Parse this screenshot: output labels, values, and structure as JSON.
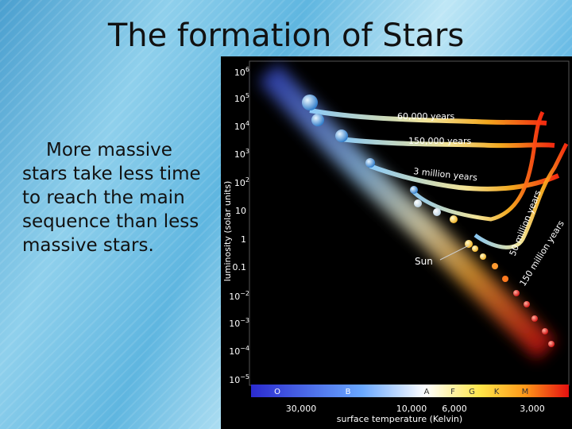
{
  "slide": {
    "title": "The formation of Stars",
    "body_text": "More massive stars take less time to reach the main sequence than less massive stars."
  },
  "figure": {
    "y_axis_label": "luminosity (solar units)",
    "y_ticks": [
      {
        "base": "10",
        "exp": "6"
      },
      {
        "base": "10",
        "exp": "5"
      },
      {
        "base": "10",
        "exp": "4"
      },
      {
        "base": "10",
        "exp": "3"
      },
      {
        "base": "10",
        "exp": "2"
      },
      {
        "base": "10",
        "exp": ""
      },
      {
        "base": "1",
        "exp": ""
      },
      {
        "base": "0.1",
        "exp": ""
      },
      {
        "base": "10",
        "exp": "−2"
      },
      {
        "base": "10",
        "exp": "−3"
      },
      {
        "base": "10",
        "exp": "−4"
      },
      {
        "base": "10",
        "exp": "−5"
      }
    ],
    "spectral_classes": [
      "O",
      "B",
      "A",
      "F",
      "G",
      "K",
      "M"
    ],
    "temperature_ticks": [
      "30,000",
      "10,000",
      "6,000",
      "3,000"
    ],
    "x_axis_label": "surface temperature (Kelvin)",
    "track_labels": [
      "60,000 years",
      "150,000 years",
      "3 million years",
      "50 million years",
      "150 million years"
    ],
    "sun_label": "Sun"
  }
}
